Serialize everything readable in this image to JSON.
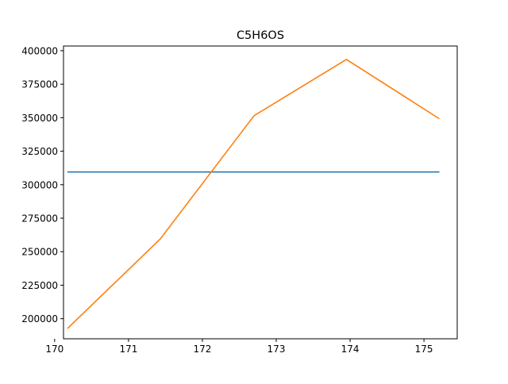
{
  "chart_data": {
    "type": "line",
    "title": "C5H6OS",
    "xlabel": "",
    "ylabel": "",
    "xlim": [
      170.12,
      175.45
    ],
    "ylim": [
      185000,
      403500
    ],
    "grid": false,
    "xticks": [
      170,
      171,
      172,
      173,
      174,
      175
    ],
    "yticks": [
      200000,
      225000,
      250000,
      275000,
      300000,
      325000,
      350000,
      375000,
      400000
    ],
    "xtick_labels": [
      "170",
      "171",
      "172",
      "173",
      "174",
      "175"
    ],
    "ytick_labels": [
      "200000",
      "225000",
      "250000",
      "275000",
      "300000",
      "325000",
      "350000",
      "375000",
      "400000"
    ],
    "series": [
      {
        "color": "#1f77b4",
        "x": [
          170.18,
          175.2
        ],
        "y": [
          309500,
          309500
        ]
      },
      {
        "color": "#ff7f0e",
        "x": [
          170.18,
          171.43,
          172.7,
          173.95,
          175.2
        ],
        "y": [
          193000,
          259500,
          351500,
          393500,
          349500
        ]
      }
    ]
  }
}
